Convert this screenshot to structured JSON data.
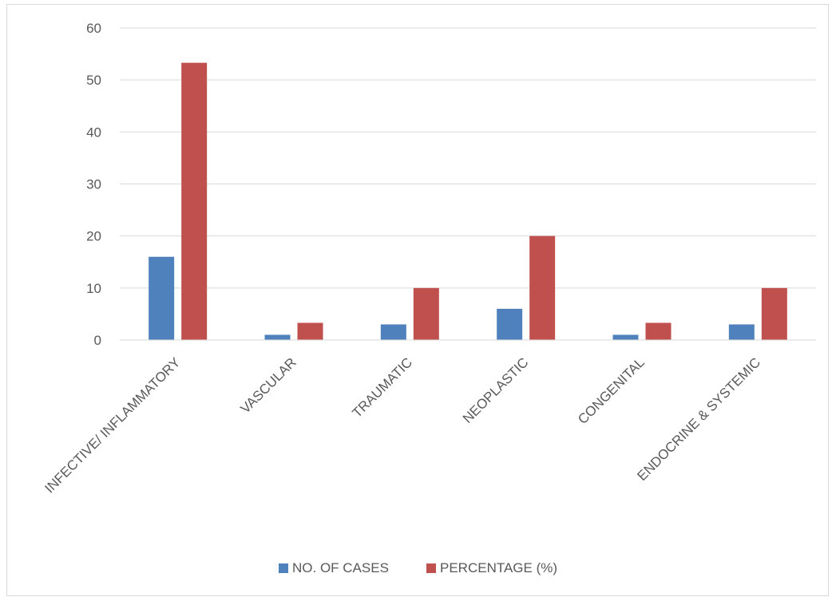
{
  "chart_data": {
    "type": "bar",
    "categories": [
      "INFECTIVE/ INFLAMMATORY",
      "VASCULAR",
      "TRAUMATIC",
      "NEOPLASTIC",
      "CONGENITAL",
      "ENDOCRINE & SYSTEMIC"
    ],
    "series": [
      {
        "name": "NO. OF CASES",
        "values": [
          16,
          1,
          3,
          6,
          1,
          3
        ],
        "color": "#4f81bd"
      },
      {
        "name": "PERCENTAGE (%)",
        "values": [
          53.3,
          3.3,
          10,
          20,
          3.3,
          10
        ],
        "color": "#c0504d"
      }
    ],
    "ylim": [
      0,
      60
    ],
    "yticks": [
      0,
      10,
      20,
      30,
      40,
      50,
      60
    ],
    "grid": true,
    "legend_position": "bottom",
    "title": "",
    "xlabel": "",
    "ylabel": ""
  }
}
